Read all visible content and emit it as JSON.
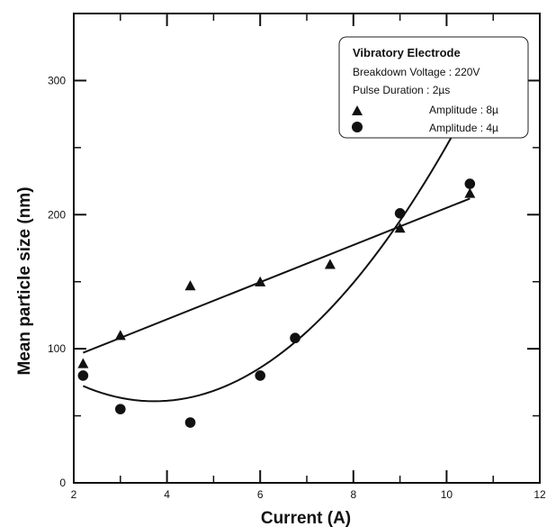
{
  "chart_data": {
    "type": "scatter",
    "xlabel": "Current (A)",
    "ylabel": "Mean particle size (nm)",
    "xlim": [
      2,
      12
    ],
    "ylim": [
      0,
      350
    ],
    "xticks": [
      2,
      4,
      6,
      8,
      10,
      12
    ],
    "yticks": [
      0,
      100,
      200,
      300
    ],
    "grid": false,
    "legend_position": "top-right",
    "legend": {
      "title": "Vibratory Electrode",
      "lines": [
        "Breakdown Voltage : 220V",
        "Pulse Duration : 2µs"
      ],
      "entries": [
        "Amplitude : 8µ",
        "Amplitude :  4µ"
      ]
    },
    "series": [
      {
        "name": "Amplitude : 8µ",
        "marker": "triangle",
        "x": [
          2.2,
          3.0,
          4.5,
          6.0,
          7.5,
          9.0,
          10.5
        ],
        "y": [
          89,
          110,
          147,
          150,
          163,
          190,
          216
        ],
        "fit": {
          "kind": "linear",
          "x": [
            2.2,
            10.5
          ],
          "y": [
            97,
            212
          ]
        }
      },
      {
        "name": "Amplitude :  4µ",
        "marker": "circle",
        "x": [
          2.2,
          3.0,
          4.5,
          6.0,
          6.75,
          9.0,
          10.5
        ],
        "y": [
          80,
          55,
          45,
          80,
          108,
          201,
          223
        ],
        "fit": {
          "kind": "quadratic",
          "x_range": [
            2.2,
            10.5
          ],
          "coeffs": [
            4.85,
            -36.2,
            128.4
          ]
        }
      }
    ],
    "colors": {
      "marks": "#111111",
      "axes": "#111111"
    }
  }
}
